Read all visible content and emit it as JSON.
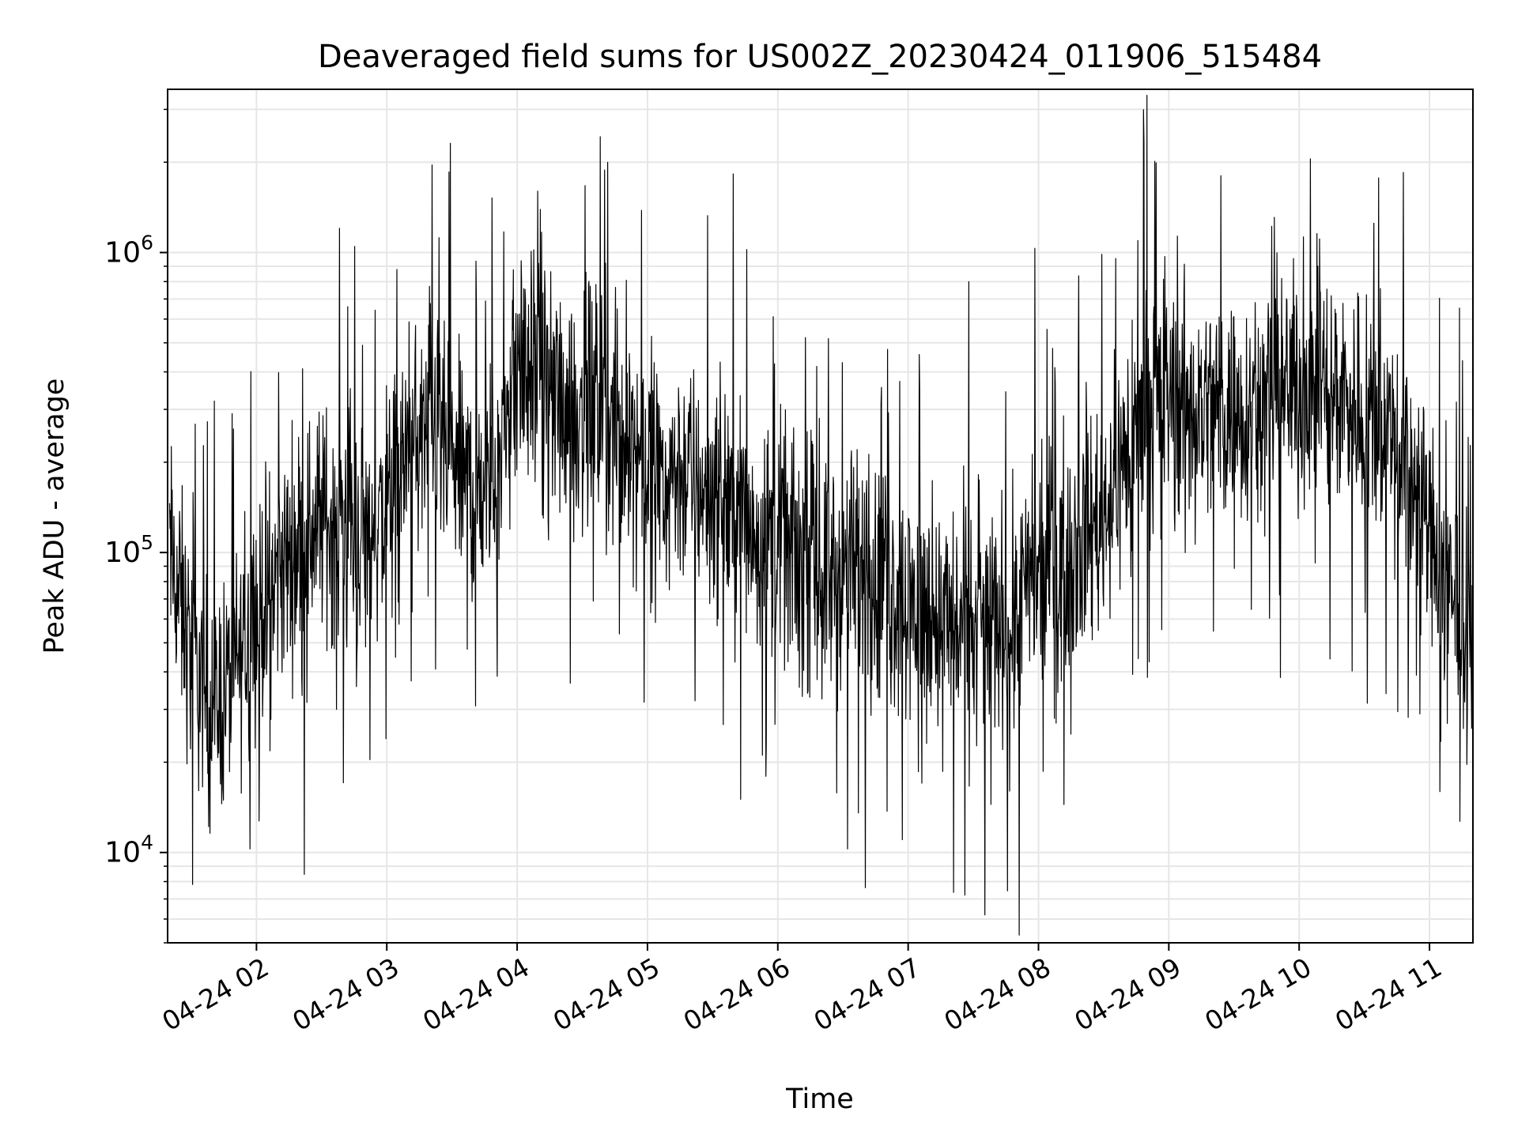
{
  "chart_data": {
    "type": "line",
    "title": "Deaveraged field sums for US002Z_20230424_011906_515484",
    "xlabel": "Time",
    "ylabel": "Peak ADU - average",
    "y_scale": "log",
    "ylim": [
      5000,
      3500000
    ],
    "xlim": [
      "2023-04-24T01:19:06",
      "2023-04-24T11:20:00"
    ],
    "x_tick_labels": [
      "04-24 02",
      "04-24 03",
      "04-24 04",
      "04-24 05",
      "04-24 06",
      "04-24 07",
      "04-24 08",
      "04-24 09",
      "04-24 10",
      "04-24 11"
    ],
    "x_ticks": [
      "2023-04-24T02:00:00",
      "2023-04-24T03:00:00",
      "2023-04-24T04:00:00",
      "2023-04-24T05:00:00",
      "2023-04-24T06:00:00",
      "2023-04-24T07:00:00",
      "2023-04-24T08:00:00",
      "2023-04-24T09:00:00",
      "2023-04-24T10:00:00",
      "2023-04-24T11:00:00"
    ],
    "y_ticks": [
      10000,
      100000,
      1000000
    ],
    "y_tick_labels": [
      {
        "base": "10",
        "exp": "4"
      },
      {
        "base": "10",
        "exp": "5"
      },
      {
        "base": "10",
        "exp": "6"
      }
    ],
    "grid": true,
    "colors": {
      "line": "#000000",
      "grid": "#e6e6e6",
      "axes": "#000000"
    },
    "series": [
      {
        "x": [
          "2023-04-24T01:20:00",
          "2023-04-24T01:30:00",
          "2023-04-24T01:40:00",
          "2023-04-24T01:50:00",
          "2023-04-24T02:00:00",
          "2023-04-24T02:10:00",
          "2023-04-24T02:20:00",
          "2023-04-24T02:30:00",
          "2023-04-24T02:40:00",
          "2023-04-24T02:50:00",
          "2023-04-24T03:00:00",
          "2023-04-24T03:10:00",
          "2023-04-24T03:20:00",
          "2023-04-24T03:30:00",
          "2023-04-24T03:40:00",
          "2023-04-24T03:50:00",
          "2023-04-24T04:00:00",
          "2023-04-24T04:10:00",
          "2023-04-24T04:20:00",
          "2023-04-24T04:30:00",
          "2023-04-24T04:40:00",
          "2023-04-24T04:50:00",
          "2023-04-24T05:00:00",
          "2023-04-24T05:10:00",
          "2023-04-24T05:20:00",
          "2023-04-24T05:30:00",
          "2023-04-24T05:40:00",
          "2023-04-24T05:50:00",
          "2023-04-24T06:00:00",
          "2023-04-24T06:10:00",
          "2023-04-24T06:20:00",
          "2023-04-24T06:30:00",
          "2023-04-24T06:40:00",
          "2023-04-24T06:50:00",
          "2023-04-24T07:00:00",
          "2023-04-24T07:10:00",
          "2023-04-24T07:20:00",
          "2023-04-24T07:30:00",
          "2023-04-24T07:40:00",
          "2023-04-24T07:50:00",
          "2023-04-24T08:00:00",
          "2023-04-24T08:10:00",
          "2023-04-24T08:20:00",
          "2023-04-24T08:30:00",
          "2023-04-24T08:40:00",
          "2023-04-24T08:50:00",
          "2023-04-24T09:00:00",
          "2023-04-24T09:10:00",
          "2023-04-24T09:20:00",
          "2023-04-24T09:30:00",
          "2023-04-24T09:40:00",
          "2023-04-24T09:50:00",
          "2023-04-24T10:00:00",
          "2023-04-24T10:10:00",
          "2023-04-24T10:20:00",
          "2023-04-24T10:30:00",
          "2023-04-24T10:40:00",
          "2023-04-24T10:50:00",
          "2023-04-24T11:00:00",
          "2023-04-24T11:10:00",
          "2023-04-24T11:20:00"
        ],
        "y": [
          100000,
          45000,
          30000,
          40000,
          60000,
          85000,
          110000,
          130000,
          120000,
          110000,
          140000,
          220000,
          250000,
          200000,
          160000,
          180000,
          420000,
          380000,
          330000,
          300000,
          280000,
          240000,
          210000,
          190000,
          180000,
          160000,
          140000,
          120000,
          110000,
          95000,
          80000,
          90000,
          85000,
          75000,
          70000,
          62000,
          58000,
          55000,
          60000,
          65000,
          80000,
          95000,
          110000,
          140000,
          210000,
          280000,
          330000,
          320000,
          300000,
          310000,
          290000,
          330000,
          360000,
          350000,
          340000,
          300000,
          250000,
          200000,
          120000,
          65000,
          60000
        ]
      }
    ]
  }
}
